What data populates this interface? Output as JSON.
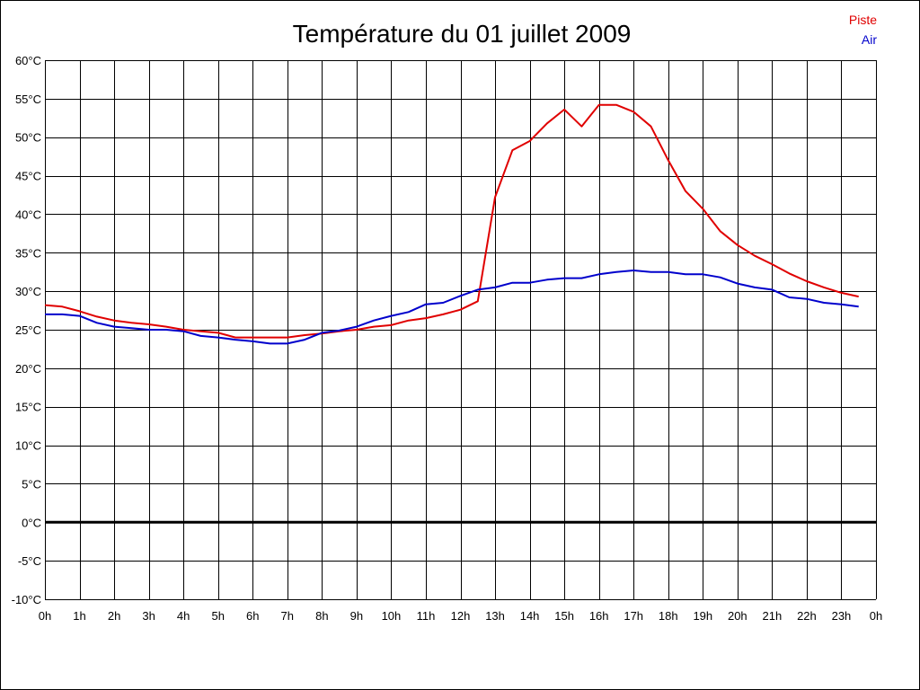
{
  "chart_data": {
    "type": "line",
    "title": "Température du 01 juillet 2009",
    "xlabel": "",
    "ylabel": "",
    "x_ticks": [
      "0h",
      "1h",
      "2h",
      "3h",
      "4h",
      "5h",
      "6h",
      "7h",
      "8h",
      "9h",
      "10h",
      "11h",
      "12h",
      "13h",
      "14h",
      "15h",
      "16h",
      "17h",
      "18h",
      "19h",
      "20h",
      "21h",
      "22h",
      "23h",
      "0h"
    ],
    "y_ticks": [
      "60°C",
      "55°C",
      "50°C",
      "45°C",
      "40°C",
      "35°C",
      "30°C",
      "25°C",
      "20°C",
      "15°C",
      "10°C",
      "5°C",
      "0°C",
      "-5°C",
      "-10°C"
    ],
    "xlim": [
      0,
      24
    ],
    "ylim": [
      -10,
      60
    ],
    "grid": true,
    "zero_line": true,
    "legend_position": "top-right",
    "series": [
      {
        "name": "Piste",
        "color": "#e00000",
        "x": [
          0,
          0.5,
          1,
          1.5,
          2,
          2.5,
          3,
          3.5,
          4,
          4.5,
          5,
          5.5,
          6,
          6.5,
          7,
          7.5,
          8,
          8.5,
          9,
          9.5,
          10,
          10.5,
          11,
          11.5,
          12,
          12.5,
          13,
          13.5,
          14,
          14.5,
          15,
          15.5,
          16,
          16.5,
          17,
          17.5,
          18,
          18.5,
          19,
          19.5,
          20,
          20.5,
          21,
          21.5,
          22,
          22.5,
          23,
          23.5
        ],
        "values": [
          28.2,
          28.0,
          27.4,
          26.7,
          26.2,
          25.9,
          25.7,
          25.4,
          25.0,
          24.8,
          24.6,
          24.0,
          24.0,
          24.0,
          24.0,
          24.3,
          24.5,
          24.8,
          25.0,
          25.4,
          25.6,
          26.2,
          26.5,
          27.0,
          27.6,
          28.7,
          42.2,
          48.3,
          49.5,
          51.8,
          53.6,
          51.4,
          54.2,
          54.2,
          53.3,
          51.4,
          47.0,
          43.0,
          40.7,
          37.8,
          36.0,
          34.6,
          33.5,
          32.3,
          31.3,
          30.5,
          29.8,
          29.3
        ]
      },
      {
        "name": "Air",
        "color": "#0000cc",
        "x": [
          0,
          0.5,
          1,
          1.5,
          2,
          2.5,
          3,
          3.5,
          4,
          4.5,
          5,
          5.5,
          6,
          6.5,
          7,
          7.5,
          8,
          8.5,
          9,
          9.5,
          10,
          10.5,
          11,
          11.5,
          12,
          12.5,
          13,
          13.5,
          14,
          14.5,
          15,
          15.5,
          16,
          16.5,
          17,
          17.5,
          18,
          18.5,
          19,
          19.5,
          20,
          20.5,
          21,
          21.5,
          22,
          22.5,
          23,
          23.5
        ],
        "values": [
          27.0,
          27.0,
          26.8,
          25.9,
          25.4,
          25.2,
          25.0,
          25.0,
          24.8,
          24.2,
          24.0,
          23.7,
          23.5,
          23.2,
          23.2,
          23.7,
          24.6,
          24.9,
          25.4,
          26.2,
          26.8,
          27.3,
          28.3,
          28.5,
          29.4,
          30.2,
          30.5,
          31.1,
          31.1,
          31.5,
          31.7,
          31.7,
          32.2,
          32.5,
          32.7,
          32.5,
          32.5,
          32.2,
          32.2,
          31.8,
          31.0,
          30.5,
          30.2,
          29.2,
          29.0,
          28.5,
          28.3,
          28.0
        ]
      }
    ]
  }
}
